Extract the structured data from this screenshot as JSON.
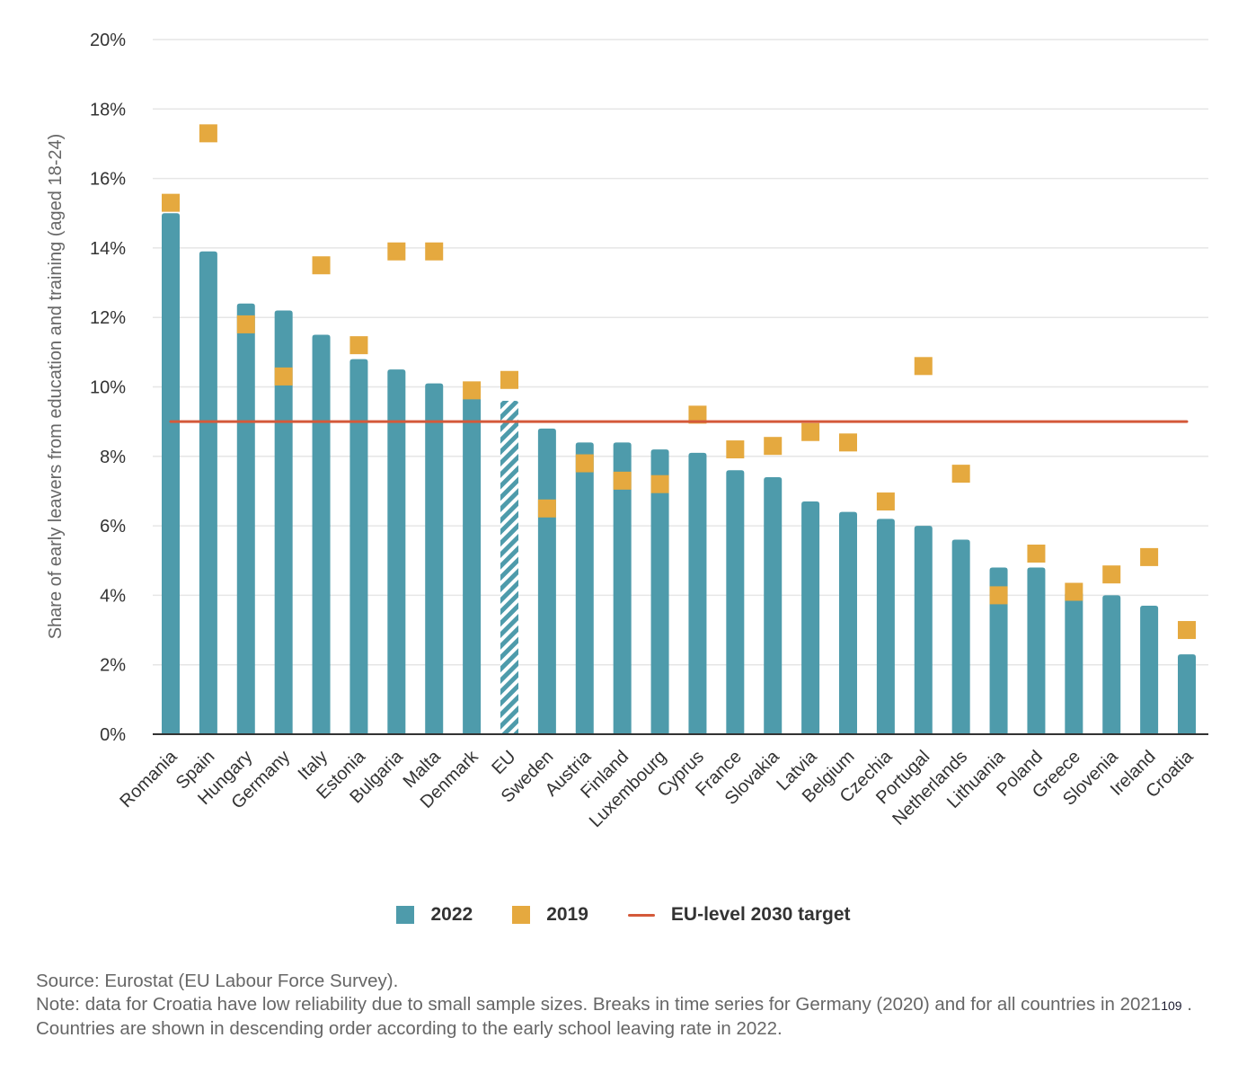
{
  "colors": {
    "bar_2022": "#4e9bab",
    "marker_2019": "#e5a93f",
    "target_line": "#d4593a",
    "grid": "#e6e6e6",
    "axis": "#333333"
  },
  "chart_data": {
    "type": "bar",
    "title": "",
    "xlabel": "",
    "ylabel": "Share of early leavers from education and training (aged 18-24)",
    "ylim": [
      0,
      20
    ],
    "yticks": [
      0,
      2,
      4,
      6,
      8,
      10,
      12,
      14,
      16,
      18,
      20
    ],
    "ytick_labels": [
      "0%",
      "2%",
      "4%",
      "6%",
      "8%",
      "10%",
      "12%",
      "14%",
      "16%",
      "18%",
      "20%"
    ],
    "grid": true,
    "categories": [
      "Romania",
      "Spain",
      "Hungary",
      "Germany",
      "Italy",
      "Estonia",
      "Bulgaria",
      "Malta",
      "Denmark",
      "EU",
      "Sweden",
      "Austria",
      "Finland",
      "Luxembourg",
      "Cyprus",
      "France",
      "Slovakia",
      "Latvia",
      "Belgium",
      "Czechia",
      "Portugal",
      "Netherlands",
      "Lithuania",
      "Poland",
      "Greece",
      "Slovenia",
      "Ireland",
      "Croatia"
    ],
    "highlight_category": "EU",
    "series": [
      {
        "name": "2022",
        "type": "bar",
        "values": [
          15.0,
          13.9,
          12.4,
          12.2,
          11.5,
          10.8,
          10.5,
          10.1,
          9.7,
          9.6,
          8.8,
          8.4,
          8.4,
          8.2,
          8.1,
          7.6,
          7.4,
          6.7,
          6.4,
          6.2,
          6.0,
          5.6,
          4.8,
          4.8,
          4.1,
          4.0,
          3.7,
          2.3
        ]
      },
      {
        "name": "2019",
        "type": "marker",
        "values": [
          15.3,
          17.3,
          11.8,
          10.3,
          13.5,
          11.2,
          13.9,
          13.9,
          9.9,
          10.2,
          6.5,
          7.8,
          7.3,
          7.2,
          9.2,
          8.2,
          8.3,
          8.7,
          8.4,
          6.7,
          10.6,
          7.5,
          4.0,
          5.2,
          4.1,
          4.6,
          5.1,
          3.0
        ]
      },
      {
        "name": "EU-level 2030 target",
        "type": "line",
        "value": 9.0
      }
    ],
    "legend": {
      "position": "bottom-center",
      "entries": [
        "2022",
        "2019",
        "EU-level 2030 target"
      ]
    }
  },
  "footer": {
    "source": "Source: Eurostat (EU Labour Force Survey).",
    "note_before_ref": "Note: data for Croatia have low reliability due to small sample sizes. Breaks in time series for Germany (2020) and for all countries in 2021",
    "note_ref": "109",
    "note_after_ref": " . Countries are shown in descending order according to the early school leaving rate in 2022."
  }
}
